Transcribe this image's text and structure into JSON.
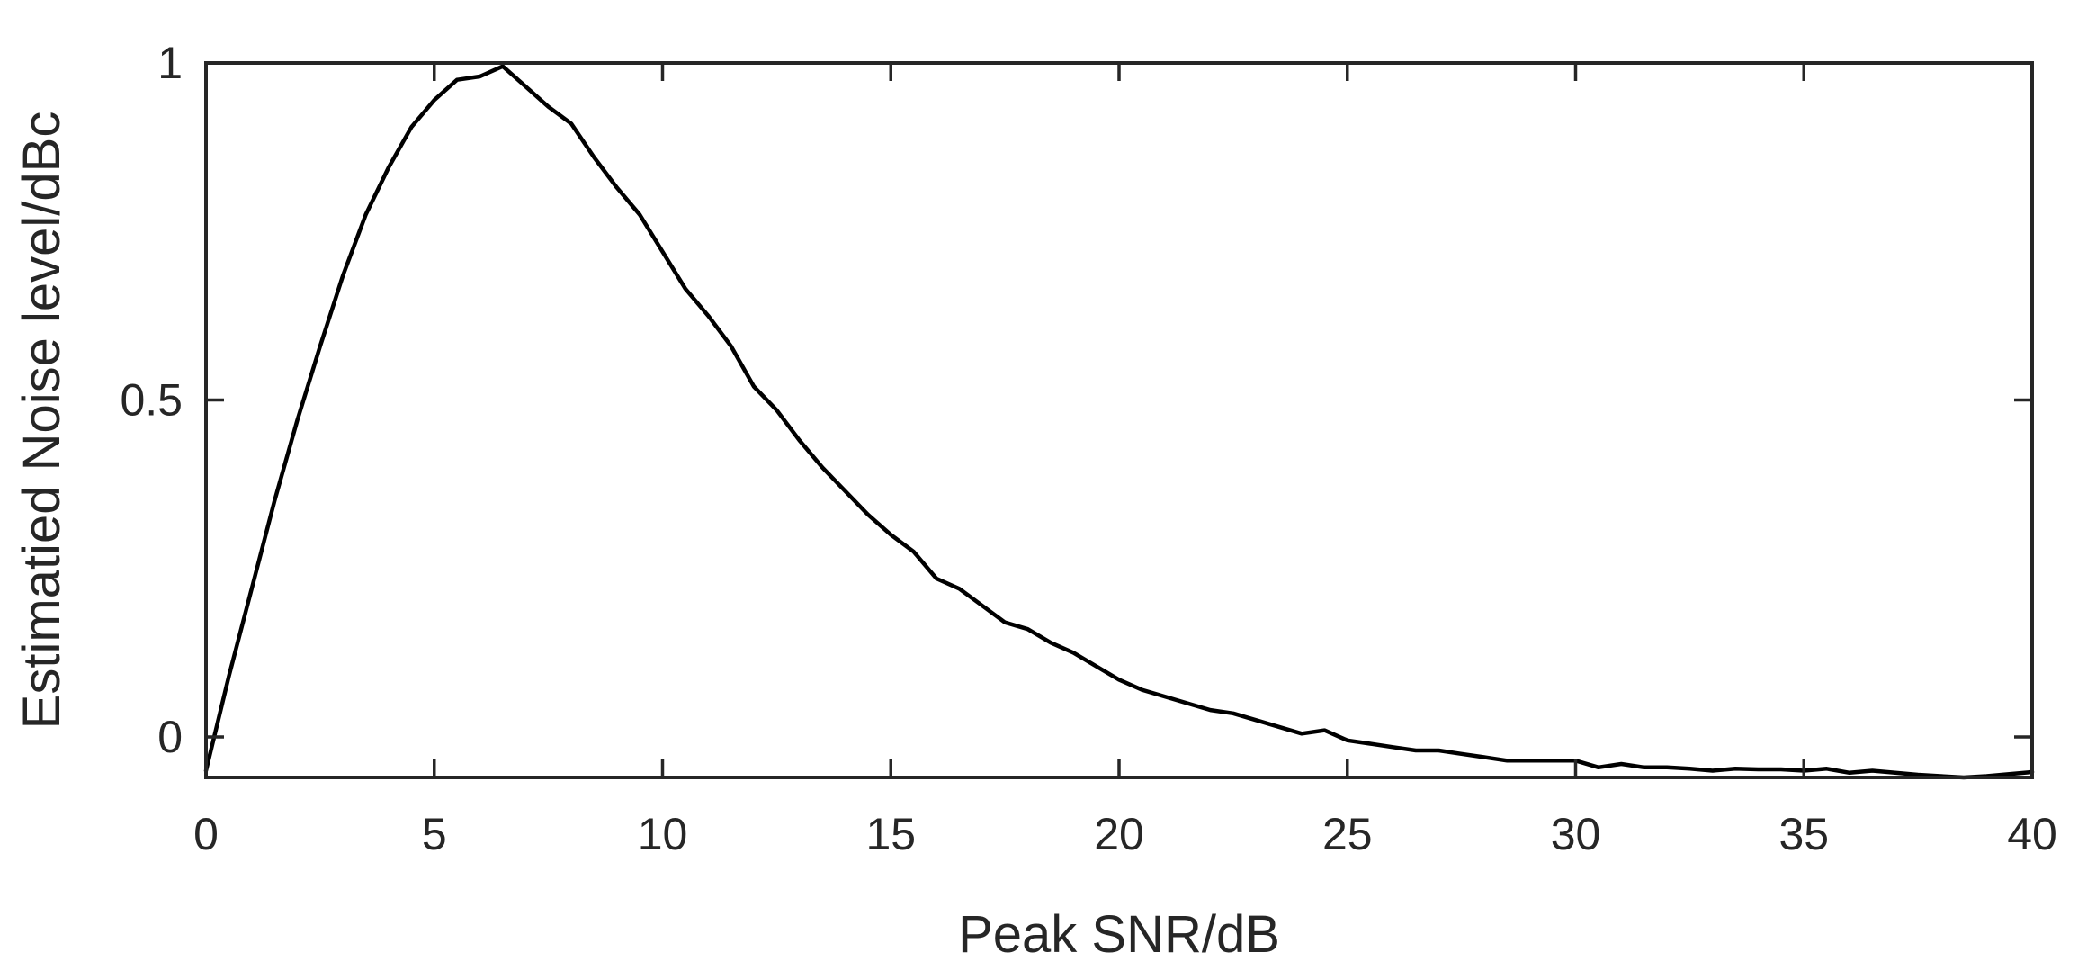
{
  "chart_data": {
    "type": "line",
    "title": "",
    "xlabel": "Peak SNR/dB",
    "ylabel": "Estimatied Noise level/dBc",
    "xlim": [
      0,
      40
    ],
    "ylim": [
      -0.06,
      1
    ],
    "xticks": [
      0,
      5,
      10,
      15,
      20,
      25,
      30,
      35,
      40
    ],
    "xtick_labels": [
      "0",
      "5",
      "10",
      "15",
      "20",
      "25",
      "30",
      "35",
      "40"
    ],
    "yticks": [
      0,
      0.5,
      1
    ],
    "ytick_labels": [
      "0",
      "0.5",
      "1"
    ],
    "grid": false,
    "legend": "none",
    "box": true,
    "series": [
      {
        "color": "#000000",
        "x": [
          0,
          0.5,
          1,
          1.5,
          2,
          2.5,
          3,
          3.5,
          4,
          4.5,
          5,
          5.5,
          6,
          6.5,
          7,
          7.5,
          8,
          8.5,
          9,
          9.5,
          10,
          10.5,
          11,
          11.5,
          12,
          12.5,
          13,
          13.5,
          14,
          14.5,
          15,
          15.5,
          16,
          16.5,
          17,
          17.5,
          18,
          18.5,
          19,
          19.5,
          20,
          20.5,
          21,
          21.5,
          22,
          22.5,
          23,
          23.5,
          24,
          24.5,
          25,
          25.5,
          26,
          26.5,
          27,
          27.5,
          28,
          28.5,
          29,
          29.5,
          30,
          30.5,
          31,
          31.5,
          32,
          32.5,
          33,
          33.5,
          34,
          34.5,
          35,
          35.5,
          36,
          36.5,
          37,
          37.5,
          38,
          38.5,
          39,
          39.5,
          40
        ],
        "y": [
          -0.05,
          0.09,
          0.22,
          0.35,
          0.47,
          0.58,
          0.685,
          0.775,
          0.845,
          0.905,
          0.945,
          0.975,
          0.98,
          0.995,
          0.965,
          0.935,
          0.91,
          0.86,
          0.815,
          0.775,
          0.72,
          0.665,
          0.625,
          0.58,
          0.52,
          0.485,
          0.44,
          0.4,
          0.365,
          0.33,
          0.3,
          0.275,
          0.235,
          0.22,
          0.195,
          0.17,
          0.16,
          0.14,
          0.125,
          0.105,
          0.085,
          0.07,
          0.06,
          0.05,
          0.04,
          0.035,
          0.025,
          0.015,
          0.005,
          0.01,
          -0.005,
          -0.01,
          -0.015,
          -0.02,
          -0.02,
          -0.025,
          -0.03,
          -0.035,
          -0.035,
          -0.035,
          -0.035,
          -0.045,
          -0.04,
          -0.045,
          -0.045,
          -0.047,
          -0.05,
          -0.047,
          -0.048,
          -0.048,
          -0.05,
          -0.047,
          -0.053,
          -0.05,
          -0.053,
          -0.056,
          -0.058,
          -0.06,
          -0.058,
          -0.055,
          -0.052
        ]
      }
    ]
  }
}
